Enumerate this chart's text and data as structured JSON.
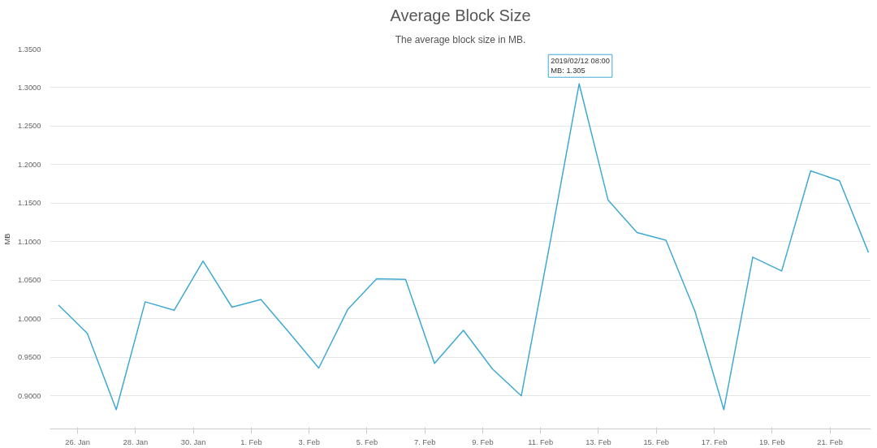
{
  "chart_data": {
    "type": "line",
    "title": "Average Block Size",
    "subtitle": "The average block size in MB.",
    "ylabel": "MB",
    "x": [
      "2019-01-25T08:00",
      "2019-01-26T08:00",
      "2019-01-27T08:00",
      "2019-01-28T08:00",
      "2019-01-29T08:00",
      "2019-01-30T08:00",
      "2019-01-31T08:00",
      "2019-02-01T08:00",
      "2019-02-02T08:00",
      "2019-02-03T08:00",
      "2019-02-04T08:00",
      "2019-02-05T08:00",
      "2019-02-06T08:00",
      "2019-02-07T08:00",
      "2019-02-08T08:00",
      "2019-02-09T08:00",
      "2019-02-10T08:00",
      "2019-02-11T08:00",
      "2019-02-12T08:00",
      "2019-02-13T08:00",
      "2019-02-14T08:00",
      "2019-02-15T08:00",
      "2019-02-16T08:00",
      "2019-02-17T08:00",
      "2019-02-18T08:00",
      "2019-02-19T08:00",
      "2019-02-20T08:00",
      "2019-02-21T08:00",
      "2019-02-22T08:00"
    ],
    "series": [
      {
        "color": "#3fa9d4",
        "values": [
          1.018,
          0.981,
          0.882,
          1.022,
          1.011,
          1.075,
          1.015,
          1.025,
          0.981,
          0.936,
          1.012,
          1.052,
          1.051,
          0.942,
          0.985,
          0.935,
          0.9,
          1.1,
          1.305,
          1.154,
          1.112,
          1.102,
          1.01,
          0.882,
          1.08,
          1.062,
          1.192,
          1.179,
          1.086
        ]
      }
    ],
    "xlim": [
      "2019-01-25T01:00",
      "2019-02-22T10:00"
    ],
    "xticks": [
      {
        "value": "2019-01-26",
        "label": "26. Jan"
      },
      {
        "value": "2019-01-28",
        "label": "28. Jan"
      },
      {
        "value": "2019-01-30",
        "label": "30. Jan"
      },
      {
        "value": "2019-02-01",
        "label": "1. Feb"
      },
      {
        "value": "2019-02-03",
        "label": "3. Feb"
      },
      {
        "value": "2019-02-05",
        "label": "5. Feb"
      },
      {
        "value": "2019-02-07",
        "label": "7. Feb"
      },
      {
        "value": "2019-02-09",
        "label": "9. Feb"
      },
      {
        "value": "2019-02-11",
        "label": "11. Feb"
      },
      {
        "value": "2019-02-13",
        "label": "13. Feb"
      },
      {
        "value": "2019-02-15",
        "label": "15. Feb"
      },
      {
        "value": "2019-02-17",
        "label": "17. Feb"
      },
      {
        "value": "2019-02-19",
        "label": "19. Feb"
      },
      {
        "value": "2019-02-21",
        "label": "21. Feb"
      }
    ],
    "ylim": [
      0.857,
      1.35
    ],
    "yticks": [
      {
        "value": 0.9,
        "label": "0.9000"
      },
      {
        "value": 0.95,
        "label": "0.9500"
      },
      {
        "value": 1.0,
        "label": "1.0000"
      },
      {
        "value": 1.05,
        "label": "1.0500"
      },
      {
        "value": 1.1,
        "label": "1.1000"
      },
      {
        "value": 1.15,
        "label": "1.1500"
      },
      {
        "value": 1.2,
        "label": "1.2000"
      },
      {
        "value": 1.25,
        "label": "1.2500"
      },
      {
        "value": 1.3,
        "label": "1.3000"
      },
      {
        "value": 1.35,
        "label": "1.3500"
      }
    ],
    "grid": "y",
    "line_style": "solid",
    "annotations": [
      {
        "text": "2019/02/12 08:00\nMB: 1.305",
        "x": "2019-02-12T08:00",
        "y": 1.305
      }
    ]
  }
}
